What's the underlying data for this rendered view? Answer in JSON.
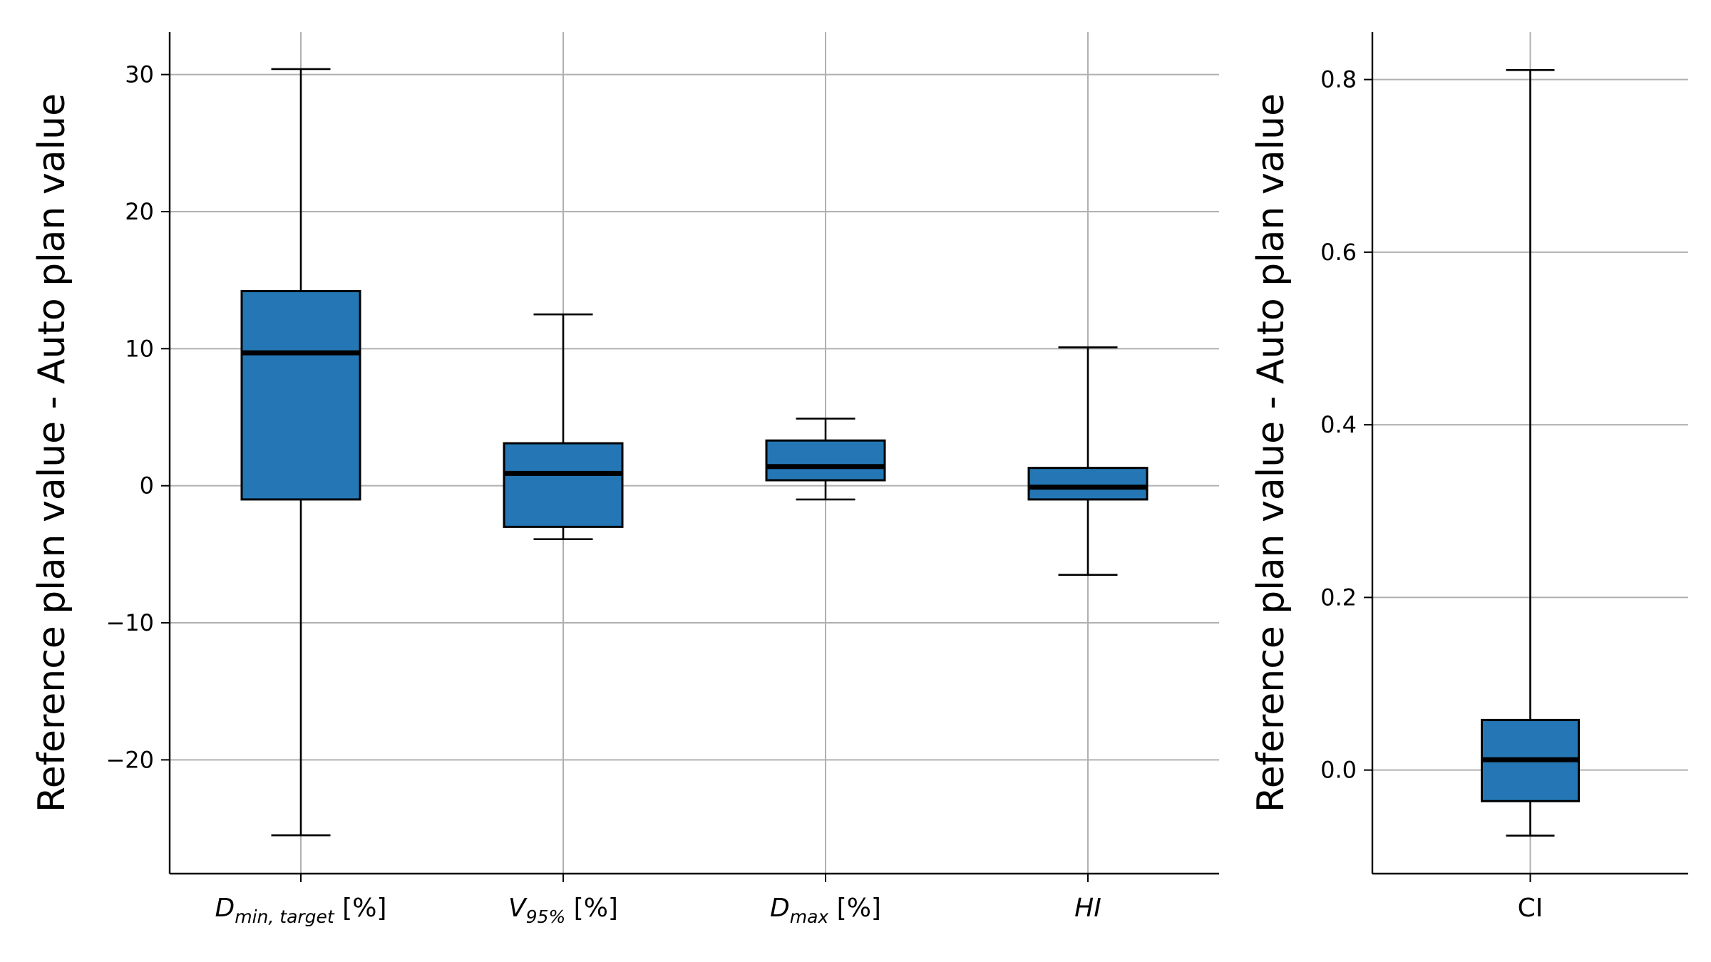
{
  "chart_data": [
    {
      "type": "box",
      "ylabel": "Reference plan value - Auto plan value",
      "ylim": [
        -28.3,
        33.1
      ],
      "yticks": [
        -20,
        -10,
        0,
        10,
        20,
        30
      ],
      "grid": true,
      "color": "#2477b4",
      "categories": [
        {
          "main": "D",
          "sub": "min, target",
          "suffix": " [%]",
          "italic": true
        },
        {
          "main": "V",
          "sub": "95%",
          "suffix": " [%]",
          "italic": true
        },
        {
          "main": "D",
          "sub": "max",
          "suffix": " [%]",
          "italic": true
        },
        {
          "main": "HI",
          "sub": "",
          "suffix": "",
          "italic": true
        }
      ],
      "boxes": [
        {
          "whislo": -25.5,
          "q1": -1.0,
          "med": 9.7,
          "q3": 14.2,
          "whishi": 30.4
        },
        {
          "whislo": -3.9,
          "q1": -3.0,
          "med": 0.9,
          "q3": 3.1,
          "whishi": 12.5
        },
        {
          "whislo": -1.0,
          "q1": 0.4,
          "med": 1.4,
          "q3": 3.3,
          "whishi": 4.9
        },
        {
          "whislo": -6.5,
          "q1": -1.0,
          "med": -0.1,
          "q3": 1.3,
          "whishi": 10.1
        }
      ]
    },
    {
      "type": "box",
      "ylabel": "Reference plan value - Auto plan value",
      "ylim": [
        -0.12,
        0.855
      ],
      "yticks": [
        "0.0",
        "0.2",
        "0.4",
        "0.6",
        "0.8"
      ],
      "grid": true,
      "color": "#2477b4",
      "categories": [
        {
          "main": "CI",
          "sub": "",
          "suffix": "",
          "italic": false
        }
      ],
      "boxes": [
        {
          "whislo": -0.076,
          "q1": -0.036,
          "med": 0.012,
          "q3": 0.058,
          "whishi": 0.811
        }
      ]
    }
  ]
}
